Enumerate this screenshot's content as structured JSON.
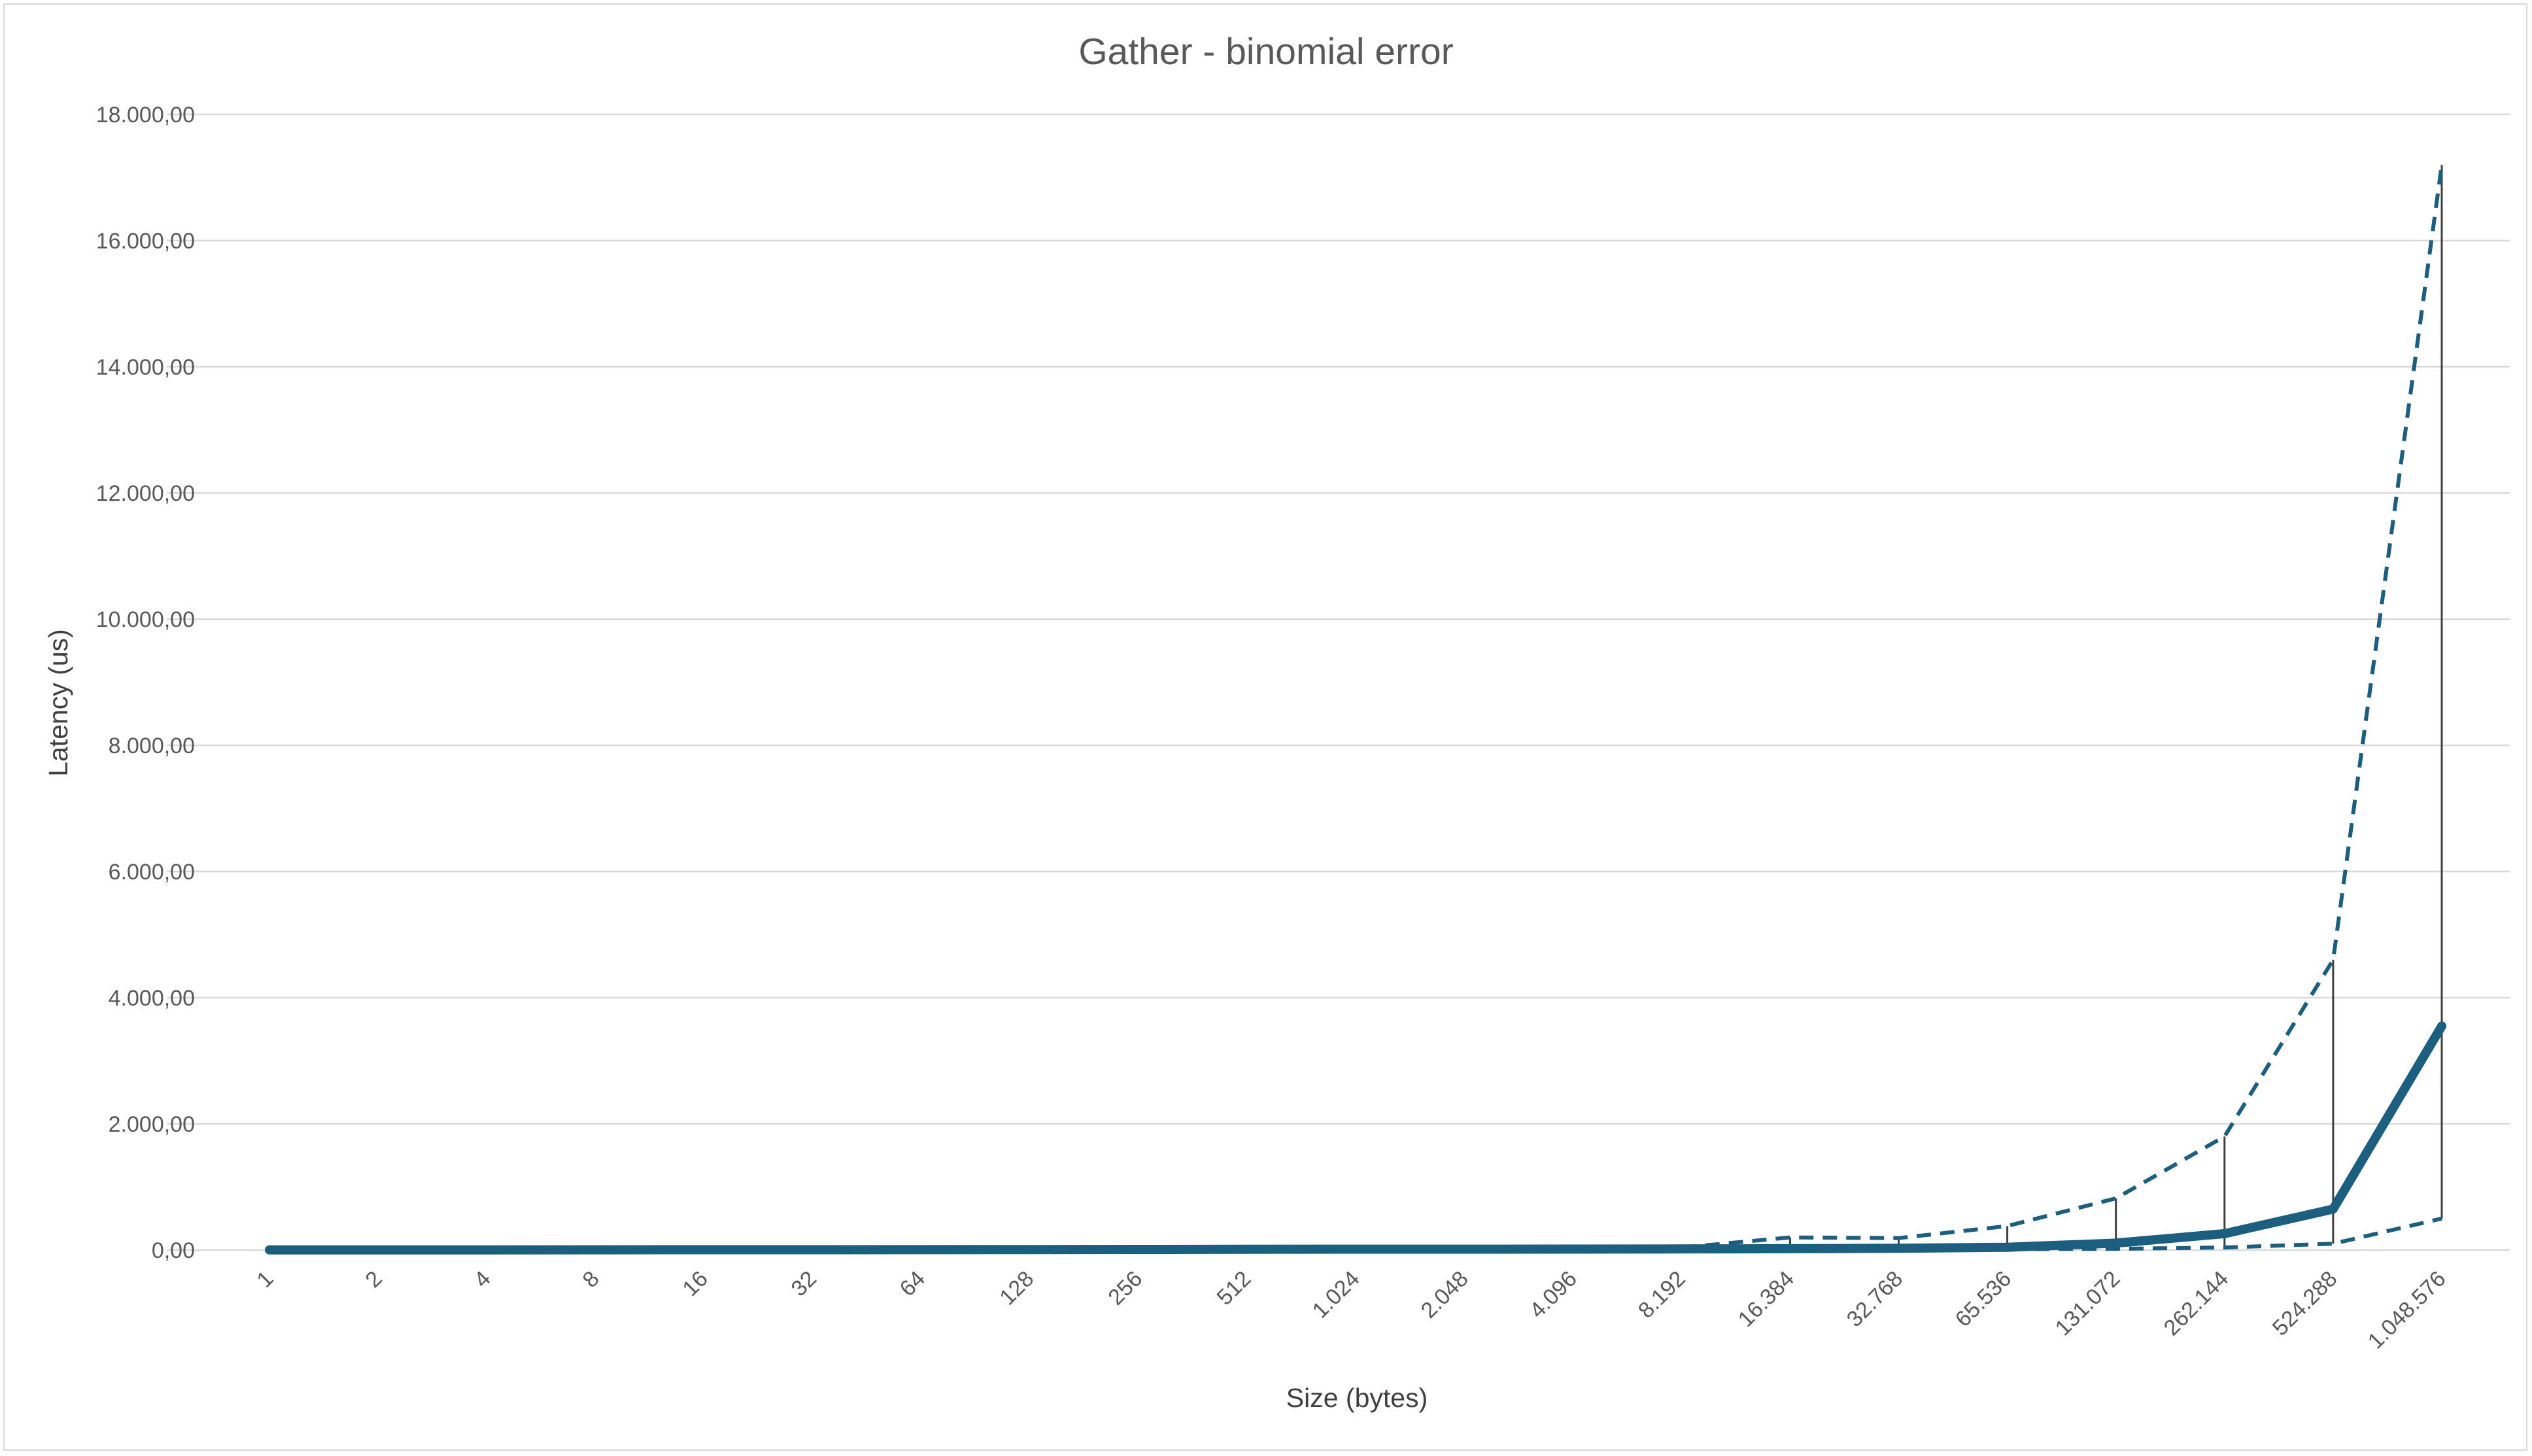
{
  "chart_data": {
    "type": "line",
    "title": "Gather - binomial error",
    "xlabel": "Size (bytes)",
    "ylabel": "Latency (us)",
    "categories": [
      "1",
      "2",
      "4",
      "8",
      "16",
      "32",
      "64",
      "128",
      "256",
      "512",
      "1.024",
      "2.048",
      "4.096",
      "8.192",
      "16.384",
      "32.768",
      "65.536",
      "131.072",
      "262.144",
      "524.288",
      "1.048.576"
    ],
    "ylim": [
      0,
      18000
    ],
    "yticks": [
      0,
      2000,
      4000,
      6000,
      8000,
      10000,
      12000,
      14000,
      16000,
      18000
    ],
    "ytick_labels": [
      "0,00",
      "2.000,00",
      "4.000,00",
      "6.000,00",
      "8.000,00",
      "10.000,00",
      "12.000,00",
      "14.000,00",
      "16.000,00",
      "18.000,00"
    ],
    "grid": true,
    "legend": "none",
    "series": [
      {
        "role": "mean",
        "style": "solid-thick",
        "color": "#1b5e7e",
        "values": [
          2,
          3,
          3,
          4,
          5,
          5,
          6,
          8,
          10,
          12,
          14,
          15,
          16,
          18,
          22,
          28,
          45,
          110,
          260,
          650,
          3550
        ]
      },
      {
        "role": "upper",
        "style": "dashed",
        "color": "#1b5e7e",
        "values": [
          3,
          4,
          4,
          5,
          6,
          6,
          7,
          10,
          12,
          14,
          17,
          18,
          20,
          40,
          200,
          190,
          380,
          820,
          1800,
          4600,
          17200
        ]
      },
      {
        "role": "lower",
        "style": "dashed",
        "color": "#1b5e7e",
        "values": [
          1,
          2,
          2,
          3,
          4,
          4,
          5,
          6,
          8,
          10,
          11,
          12,
          12,
          10,
          10,
          10,
          15,
          20,
          40,
          100,
          500
        ]
      }
    ],
    "error_bar_color": "#404040"
  }
}
